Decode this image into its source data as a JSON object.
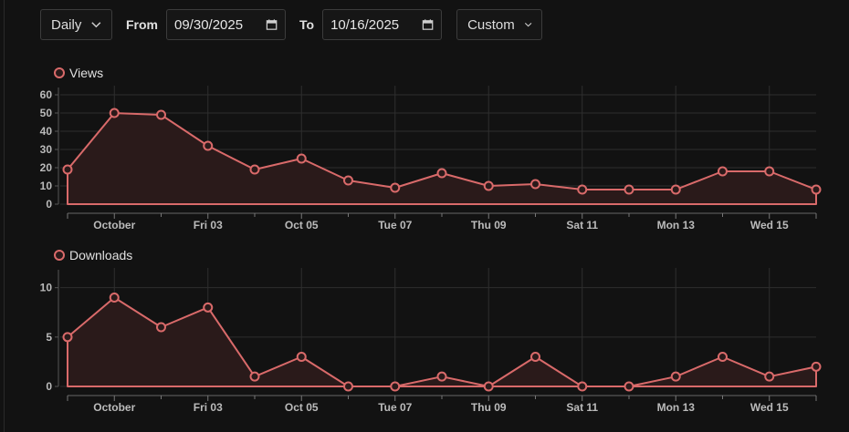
{
  "toolbar": {
    "interval": "Daily",
    "from_label": "From",
    "from_value": "09/30/2025",
    "to_label": "To",
    "to_value": "10/16/2025",
    "range": "Custom"
  },
  "colors": {
    "series": "#d96a6a",
    "fill": "#2a1a1a",
    "grid": "#2e2e2e",
    "axis": "#bbbbbb",
    "background": "#121212"
  },
  "chart_data": [
    {
      "type": "area",
      "legend": "Views",
      "x": [
        "2025-09-30",
        "2025-10-01",
        "2025-10-02",
        "2025-10-03",
        "2025-10-04",
        "2025-10-05",
        "2025-10-06",
        "2025-10-07",
        "2025-10-08",
        "2025-10-09",
        "2025-10-10",
        "2025-10-11",
        "2025-10-12",
        "2025-10-13",
        "2025-10-14",
        "2025-10-15",
        "2025-10-16"
      ],
      "series": [
        {
          "values": [
            19,
            50,
            49,
            32,
            19,
            25,
            13,
            9,
            17,
            10,
            11,
            8,
            8,
            8,
            18,
            18,
            8
          ]
        }
      ],
      "ylim": [
        0,
        65
      ],
      "yticks": [
        "0",
        "10",
        "20",
        "30",
        "40",
        "50",
        "60"
      ],
      "xticks": [
        {
          "label": "October",
          "x": "2025-10-01"
        },
        {
          "label": "Fri 03",
          "x": "2025-10-03"
        },
        {
          "label": "Oct 05",
          "x": "2025-10-05"
        },
        {
          "label": "Tue 07",
          "x": "2025-10-07"
        },
        {
          "label": "Thu 09",
          "x": "2025-10-09"
        },
        {
          "label": "Sat 11",
          "x": "2025-10-11"
        },
        {
          "label": "Mon 13",
          "x": "2025-10-13"
        },
        {
          "label": "Wed 15",
          "x": "2025-10-15"
        }
      ],
      "grid": true,
      "legend_placement": "top-left"
    },
    {
      "type": "area",
      "legend": "Downloads",
      "x": [
        "2025-09-30",
        "2025-10-01",
        "2025-10-02",
        "2025-10-03",
        "2025-10-04",
        "2025-10-05",
        "2025-10-06",
        "2025-10-07",
        "2025-10-08",
        "2025-10-09",
        "2025-10-10",
        "2025-10-11",
        "2025-10-12",
        "2025-10-13",
        "2025-10-14",
        "2025-10-15",
        "2025-10-16"
      ],
      "series": [
        {
          "values": [
            5,
            9,
            6,
            8,
            1,
            3,
            0,
            0,
            1,
            0,
            3,
            0,
            0,
            1,
            3,
            1,
            2
          ]
        }
      ],
      "ylim": [
        0,
        12
      ],
      "yticks": [
        "0",
        "5",
        "10"
      ],
      "xticks": [
        {
          "label": "October",
          "x": "2025-10-01"
        },
        {
          "label": "Fri 03",
          "x": "2025-10-03"
        },
        {
          "label": "Oct 05",
          "x": "2025-10-05"
        },
        {
          "label": "Tue 07",
          "x": "2025-10-07"
        },
        {
          "label": "Thu 09",
          "x": "2025-10-09"
        },
        {
          "label": "Sat 11",
          "x": "2025-10-11"
        },
        {
          "label": "Mon 13",
          "x": "2025-10-13"
        },
        {
          "label": "Wed 15",
          "x": "2025-10-15"
        }
      ],
      "grid": true,
      "legend_placement": "top-left"
    }
  ]
}
